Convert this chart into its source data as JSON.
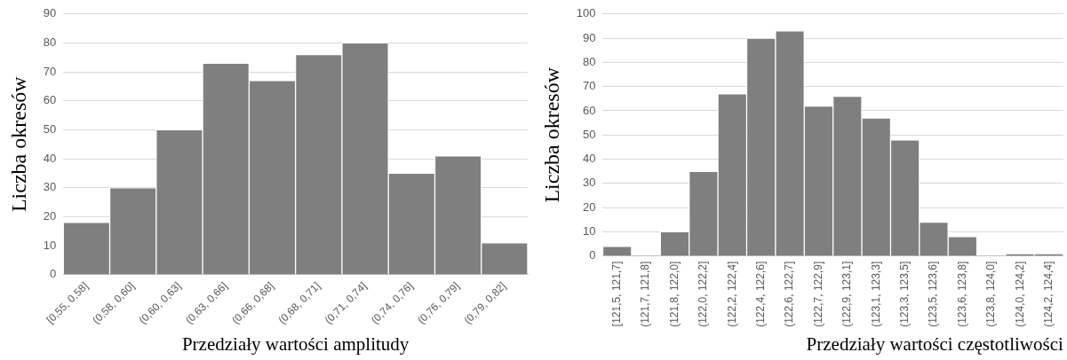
{
  "chart_data": [
    {
      "type": "bar",
      "categories": [
        "[0,55, 0,58]",
        "(0,58, 0,60]",
        "(0,60, 0,63]",
        "(0,63, 0,66]",
        "(0,66, 0,68]",
        "(0,68, 0,71]",
        "(0,71, 0,74]",
        "(0,74, 0,76]",
        "(0,76, 0,79]",
        "(0,79, 0,82]"
      ],
      "values": [
        18,
        30,
        50,
        73,
        67,
        76,
        80,
        35,
        41,
        11
      ],
      "color": "#7f7f7f",
      "ylim": [
        0,
        90
      ],
      "yticks": [
        0,
        10,
        20,
        30,
        40,
        50,
        60,
        70,
        80,
        90
      ],
      "grid": "y",
      "xlabel": "Przedziały wartości amplitudy",
      "ylabel": "Liczba okresów"
    },
    {
      "type": "bar",
      "categories": [
        "[121,5, 121,7]",
        "(121,7, 121,8]",
        "(121,8, 122,0]",
        "(122,0, 122,2]",
        "(122,2, 122,4]",
        "(122,4, 122,6]",
        "(122,6, 122,7]",
        "(122,7, 122,9]",
        "(122,9, 123,1]",
        "(123,1, 123,3]",
        "(123,3, 123,5]",
        "(123,5, 123,6]",
        "(123,6, 123,8]",
        "(123,8, 124,0]",
        "(124,0, 124,2]",
        "(124,2, 124,4]"
      ],
      "values": [
        4,
        0,
        10,
        35,
        67,
        90,
        93,
        62,
        66,
        57,
        48,
        14,
        8,
        0,
        1,
        1
      ],
      "color": "#7f7f7f",
      "ylim": [
        0,
        100
      ],
      "yticks": [
        0,
        10,
        20,
        30,
        40,
        50,
        60,
        70,
        80,
        90,
        100
      ],
      "grid": "y",
      "xlabel": "Przedziały wartości częstotliwości",
      "ylabel": "Liczba okresów"
    }
  ]
}
